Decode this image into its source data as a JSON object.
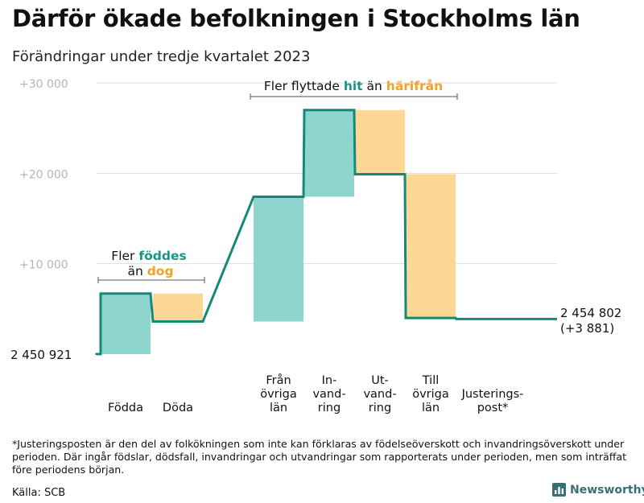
{
  "title": "Därför ökade befolkningen i Stockholms län",
  "subtitle": "Förändringar under tredje kvartalet 2023",
  "footnote": "*Justeringsposten är den del av folkökningen som inte kan förklaras av födelseöverskott och invandringsöverskott under perioden. Där ingår födslar, dödsfall, invandringar och utvandringar som rapporterats under perioden, men som inträffat före periodens början.",
  "source": "Källa: SCB",
  "brand": "Newsworthy",
  "colors": {
    "increase": "#8dd5cd",
    "decrease": "#fdd795",
    "line": "#138a78",
    "teal_text": "#1a9583",
    "orange_text": "#f2a126",
    "grid": "#dddddd",
    "tick_text": "#b5b5b5",
    "bracket": "#555555"
  },
  "annotations": {
    "births": {
      "line1_pre": "Fler ",
      "line1_em": "föddes",
      "line2_pre": "än ",
      "line2_em": "dog"
    },
    "migration": {
      "pre": "Fler flyttade ",
      "em1": "hit",
      "mid": " än ",
      "em2": "härifrån"
    }
  },
  "chart_data": {
    "type": "waterfall",
    "title": "Därför ökade befolkningen i Stockholms län",
    "subtitle": "Förändringar under tredje kvartalet 2023",
    "start_value": 2450921,
    "start_label": "2 450 921",
    "end_value": 2454802,
    "end_label": "2 454 802",
    "end_change_label": "(+3 881)",
    "y_range": [
      0,
      30000
    ],
    "y_ticks": [
      {
        "value": 10000,
        "label": "+10 000"
      },
      {
        "value": 20000,
        "label": "+20 000"
      },
      {
        "value": 30000,
        "label": "+30 000"
      }
    ],
    "steps": [
      {
        "key": "fodda",
        "label": [
          "Födda"
        ],
        "change": 6700
      },
      {
        "key": "doda",
        "label": [
          "Döda"
        ],
        "change": -3100
      },
      {
        "key": "fran_ovriga_lan",
        "label": [
          "Från",
          "övriga",
          "län"
        ],
        "change": 13800
      },
      {
        "key": "invandring",
        "label": [
          "In-",
          "vand-",
          "ring"
        ],
        "change": 9600
      },
      {
        "key": "utvandring",
        "label": [
          "Ut-",
          "vand-",
          "ring"
        ],
        "change": -7100
      },
      {
        "key": "till_ovriga_lan",
        "label": [
          "Till",
          "övriga",
          "län"
        ],
        "change": -15900
      },
      {
        "key": "justeringspost",
        "label": [
          "Justerings-",
          "post*"
        ],
        "change": -119
      }
    ]
  }
}
